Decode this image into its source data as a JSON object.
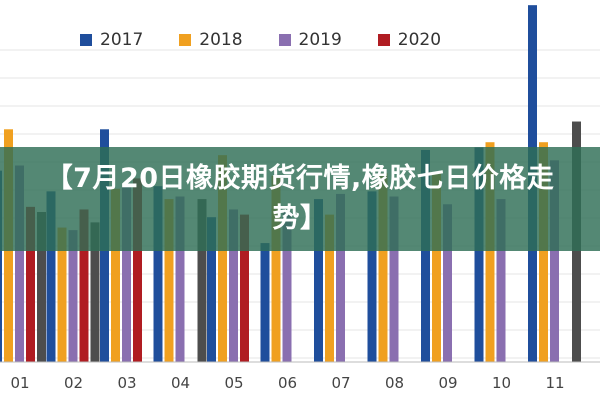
{
  "chart_data": {
    "type": "bar",
    "categories": [
      "01",
      "02",
      "03",
      "04",
      "05",
      "06",
      "07",
      "08",
      "09",
      "10",
      "11"
    ],
    "series": [
      {
        "name": "2017",
        "color": "#1f4e9c",
        "values": [
          13700,
          13300,
          14500,
          13400,
          12800,
          12300,
          13150,
          13300,
          14100,
          14150,
          16900
        ]
      },
      {
        "name": "2018",
        "color": "#f0a020",
        "values": [
          14500,
          12600,
          13350,
          13150,
          14000,
          13600,
          12850,
          13650,
          13650,
          14250,
          14250
        ]
      },
      {
        "name": "2019",
        "color": "#8a6fb0",
        "values": [
          13800,
          12550,
          13400,
          13200,
          12950,
          12900,
          13250,
          13200,
          13050,
          13150,
          13900
        ]
      },
      {
        "name": "2020",
        "color": "#b01c22",
        "values": [
          13000,
          12950,
          13550,
          null,
          12850,
          null,
          null,
          null,
          null,
          null,
          null
        ]
      }
    ],
    "extra_bars": [
      {
        "category": "01",
        "position": "left",
        "color": "#2e6d55",
        "value": 12800
      },
      {
        "category": "01",
        "position": "right",
        "color": "#4d4d4d",
        "value": 12900
      },
      {
        "category": "02",
        "position": "right",
        "color": "#4d4d4d",
        "value": 12700
      },
      {
        "category": "04",
        "position": "right",
        "color": "#4d4d4d",
        "value": 13150
      },
      {
        "category": "11",
        "position": "right",
        "color": "#4d4d4d",
        "value": 14650
      }
    ],
    "ylim": [
      10000,
      17000
    ],
    "grid": true,
    "legend": "top"
  },
  "banner": {
    "text": "【7月20日橡胶期货行情,橡胶七日价格走势】"
  }
}
